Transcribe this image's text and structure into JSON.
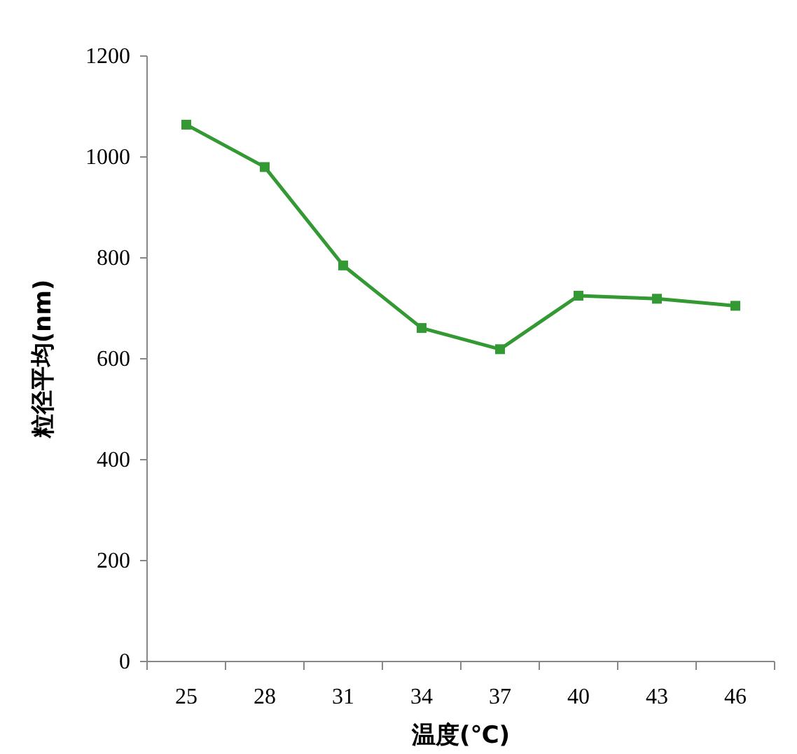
{
  "chart_data": {
    "type": "line",
    "xlabel": "温度(℃)",
    "ylabel": "粒径平均(nm)",
    "categories": [
      "25",
      "28",
      "31",
      "34",
      "37",
      "40",
      "43",
      "46"
    ],
    "series": [
      {
        "color": "#339933",
        "values": [
          1064,
          980,
          785,
          661,
          619,
          725,
          719,
          705
        ]
      }
    ],
    "ylim": [
      0,
      1200
    ],
    "yticks": [
      0,
      200,
      400,
      600,
      800,
      1000,
      1200
    ],
    "marker": "square",
    "line_style": "solid",
    "grid": false
  }
}
